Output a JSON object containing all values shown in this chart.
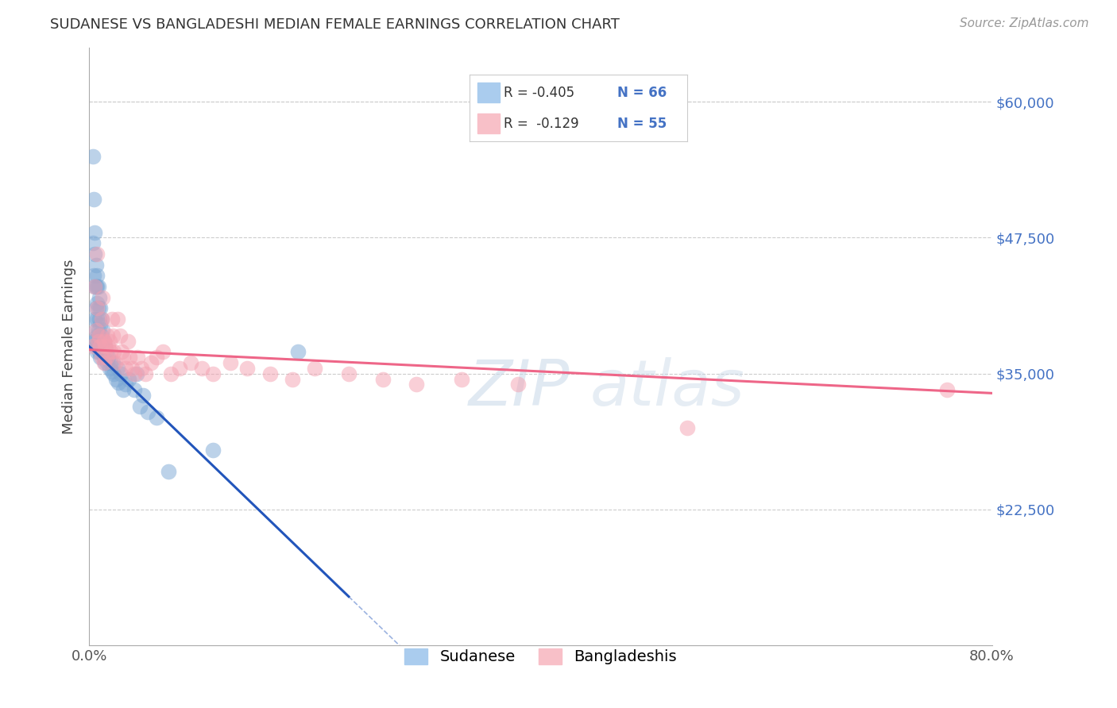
{
  "title": "SUDANESE VS BANGLADESHI MEDIAN FEMALE EARNINGS CORRELATION CHART",
  "source": "Source: ZipAtlas.com",
  "ylabel": "Median Female Earnings",
  "xlim": [
    0.0,
    0.8
  ],
  "ylim": [
    10000,
    65000
  ],
  "ytick_vals": [
    22500,
    35000,
    47500,
    60000
  ],
  "ytick_labels": [
    "$22,500",
    "$35,000",
    "$47,500",
    "$60,000"
  ],
  "sudanese_color": "#7ba7d4",
  "bangladeshi_color": "#f4a0b0",
  "trend_blue": "#2255bb",
  "trend_pink": "#ee6688",
  "label_sudanese": "Sudanese",
  "label_bangladeshi": "Bangladeshis",
  "sudanese_x": [
    0.003,
    0.003,
    0.004,
    0.004,
    0.004,
    0.005,
    0.005,
    0.005,
    0.005,
    0.005,
    0.006,
    0.006,
    0.006,
    0.006,
    0.006,
    0.007,
    0.007,
    0.007,
    0.007,
    0.007,
    0.007,
    0.008,
    0.008,
    0.008,
    0.008,
    0.009,
    0.009,
    0.009,
    0.009,
    0.01,
    0.01,
    0.01,
    0.01,
    0.011,
    0.011,
    0.011,
    0.012,
    0.012,
    0.013,
    0.013,
    0.014,
    0.014,
    0.015,
    0.016,
    0.017,
    0.018,
    0.019,
    0.02,
    0.021,
    0.022,
    0.024,
    0.025,
    0.026,
    0.028,
    0.03,
    0.032,
    0.035,
    0.04,
    0.042,
    0.045,
    0.048,
    0.052,
    0.06,
    0.07,
    0.11,
    0.185
  ],
  "sudanese_y": [
    55000,
    47000,
    51000,
    44000,
    38000,
    48000,
    46000,
    43000,
    40000,
    38000,
    45000,
    43000,
    41000,
    39000,
    37500,
    44000,
    43000,
    41500,
    40000,
    38500,
    37000,
    43000,
    41000,
    39000,
    37500,
    42000,
    40000,
    38500,
    37000,
    41000,
    39500,
    38000,
    36500,
    40000,
    38500,
    37000,
    39000,
    37500,
    38000,
    36500,
    37500,
    36000,
    37000,
    36000,
    36500,
    35500,
    36000,
    35200,
    36000,
    35000,
    34500,
    35500,
    34200,
    35000,
    33500,
    34000,
    34500,
    33500,
    35000,
    32000,
    33000,
    31500,
    31000,
    26000,
    28000,
    37000
  ],
  "bangladeshi_x": [
    0.003,
    0.005,
    0.006,
    0.007,
    0.007,
    0.008,
    0.009,
    0.01,
    0.011,
    0.011,
    0.012,
    0.013,
    0.013,
    0.014,
    0.015,
    0.016,
    0.017,
    0.018,
    0.019,
    0.02,
    0.021,
    0.022,
    0.023,
    0.025,
    0.027,
    0.029,
    0.03,
    0.032,
    0.034,
    0.036,
    0.038,
    0.04,
    0.043,
    0.046,
    0.05,
    0.055,
    0.06,
    0.065,
    0.072,
    0.08,
    0.09,
    0.1,
    0.11,
    0.125,
    0.14,
    0.16,
    0.18,
    0.2,
    0.23,
    0.26,
    0.29,
    0.33,
    0.38,
    0.53,
    0.76
  ],
  "bangladeshi_y": [
    37500,
    43000,
    39000,
    46000,
    41000,
    38000,
    38500,
    37500,
    40000,
    36500,
    42000,
    38000,
    36000,
    37500,
    36500,
    38500,
    37500,
    38000,
    37000,
    40000,
    38500,
    37000,
    36000,
    40000,
    38500,
    37000,
    36500,
    35500,
    38000,
    36500,
    35500,
    35000,
    36500,
    35500,
    35000,
    36000,
    36500,
    37000,
    35000,
    35500,
    36000,
    35500,
    35000,
    36000,
    35500,
    35000,
    34500,
    35500,
    35000,
    34500,
    34000,
    34500,
    34000,
    30000,
    33500
  ],
  "watermark_zip": "ZIP",
  "watermark_atlas": "atlas",
  "background_color": "#ffffff",
  "grid_color": "#cccccc",
  "title_color": "#333333",
  "right_tick_color": "#4472c4",
  "trend_blue_solid_end": 0.23,
  "trend_line_blue_y0": 37500,
  "trend_line_blue_slope": -100000,
  "trend_line_pink_y0": 37200,
  "trend_line_pink_slope": -5000
}
